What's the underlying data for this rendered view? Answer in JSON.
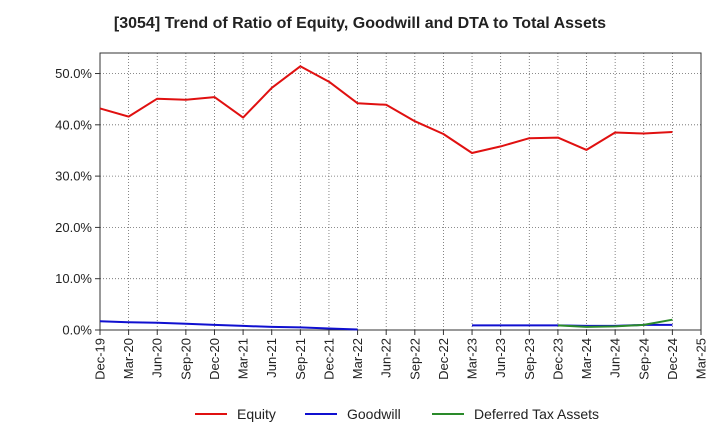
{
  "chart_data": {
    "type": "line",
    "title": "[3054]  Trend of Ratio of Equity, Goodwill and DTA to Total Assets",
    "xlabel": "",
    "ylabel": "",
    "x": [
      "Dec-19",
      "Mar-20",
      "Jun-20",
      "Sep-20",
      "Dec-20",
      "Mar-21",
      "Jun-21",
      "Sep-21",
      "Dec-21",
      "Mar-22",
      "Jun-22",
      "Sep-22",
      "Dec-22",
      "Mar-23",
      "Jun-23",
      "Sep-23",
      "Dec-23",
      "Mar-24",
      "Jun-24",
      "Sep-24",
      "Dec-24",
      "Mar-25"
    ],
    "yticks": [
      "0.0%",
      "10.0%",
      "20.0%",
      "30.0%",
      "40.0%",
      "50.0%"
    ],
    "ylim": [
      0,
      54
    ],
    "grid": true,
    "legend_position": "bottom",
    "series": [
      {
        "name": "Equity",
        "color": "#e01010",
        "values": [
          43.2,
          41.6,
          45.1,
          44.9,
          45.4,
          41.4,
          47.2,
          51.4,
          48.4,
          44.2,
          43.9,
          40.7,
          38.2,
          34.5,
          35.8,
          37.4,
          37.5,
          35.1,
          38.5,
          38.3,
          38.6,
          null
        ]
      },
      {
        "name": "Goodwill",
        "color": "#1010d0",
        "values": [
          1.7,
          1.5,
          1.4,
          1.2,
          1.0,
          0.8,
          0.6,
          0.5,
          0.3,
          0.1,
          null,
          null,
          null,
          0.9,
          0.9,
          0.9,
          0.9,
          0.8,
          0.8,
          1.0,
          1.0,
          null
        ]
      },
      {
        "name": "Deferred Tax Assets",
        "color": "#2a8a2a",
        "values": [
          null,
          null,
          null,
          null,
          null,
          null,
          null,
          null,
          null,
          null,
          null,
          null,
          null,
          null,
          null,
          null,
          0.9,
          0.6,
          0.7,
          1.0,
          2.0,
          null
        ]
      }
    ]
  }
}
